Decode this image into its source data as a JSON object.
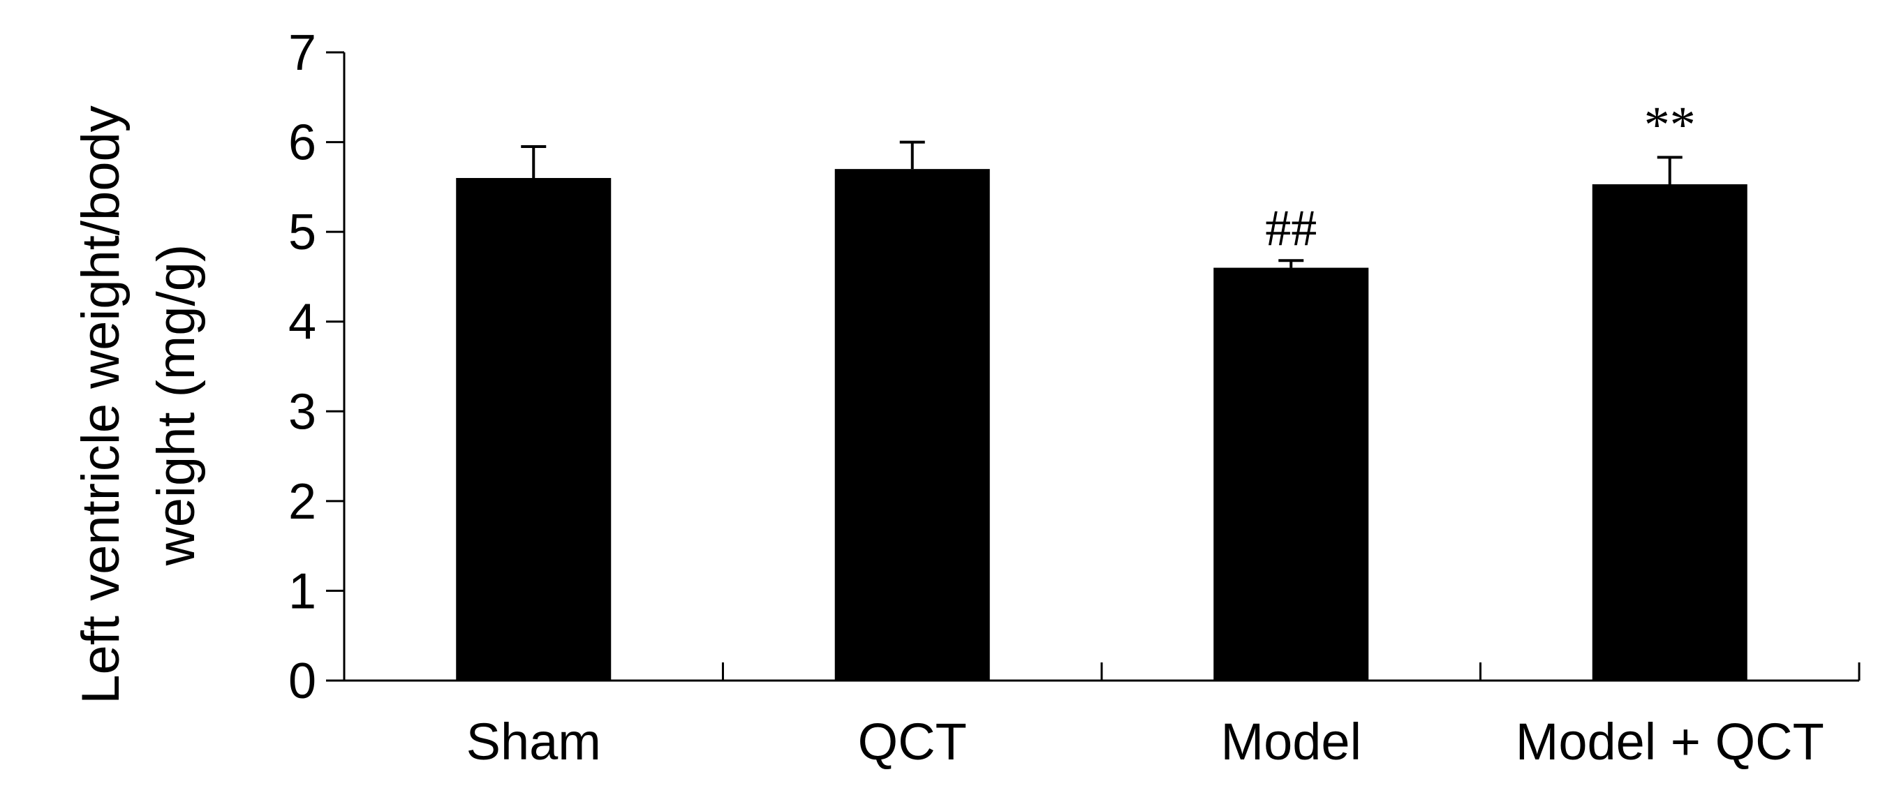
{
  "chart_data": {
    "type": "bar",
    "title": "",
    "ylabel_lines": [
      "Left ventricle weight/body",
      "weight (mg/g)"
    ],
    "xlabel": "",
    "categories": [
      "Sham",
      "QCT",
      "Model",
      "Model + QCT"
    ],
    "values": [
      5.6,
      5.7,
      4.6,
      5.53
    ],
    "error": [
      0.35,
      0.3,
      0.08,
      0.3
    ],
    "annotations": [
      "",
      "",
      "##",
      "**"
    ],
    "ylim": [
      0,
      7
    ],
    "yticks": [
      "0",
      "1",
      "2",
      "3",
      "4",
      "5",
      "6",
      "7"
    ],
    "bar_color": "#000000",
    "grid": false,
    "legend": "none"
  }
}
